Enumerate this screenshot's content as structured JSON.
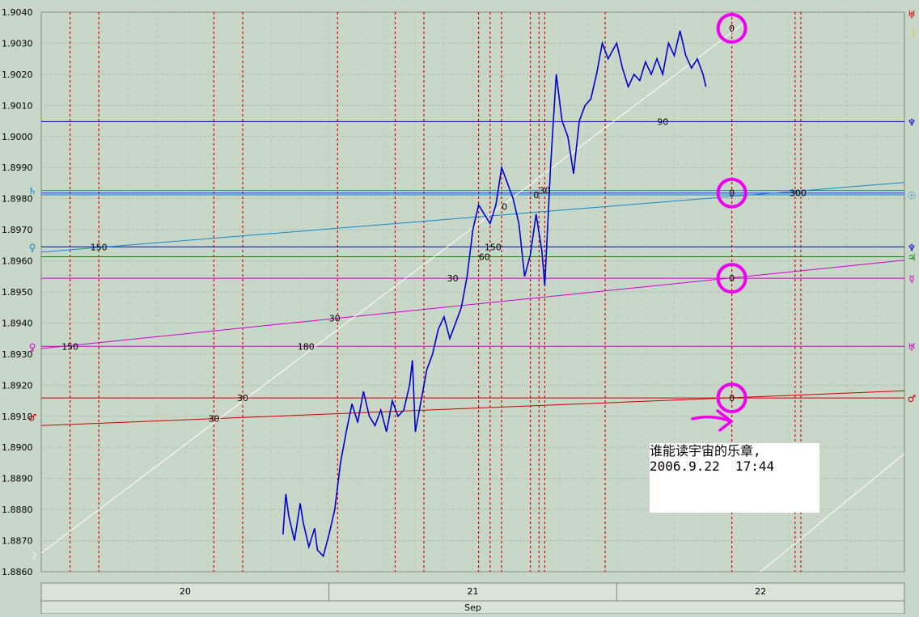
{
  "colors": {
    "background": "#c8d7c8",
    "plot_background": "#c8d7c8",
    "grid": "#9aa89a",
    "price_line": "#0000cc",
    "planet_line_red": "#cc0000",
    "planet_line_magenta": "#cc00cc",
    "planet_line_blue": "#0000cc",
    "planet_line_cyan": "#1188cc",
    "planet_line_green": "#008800",
    "moon_line": "#ffffff",
    "vertical_marker": "#dd0000",
    "highlight_circle": "#ee00ee"
  },
  "chart_data": {
    "type": "line",
    "title": "",
    "xlabel": "Sep",
    "ylabel": "",
    "ylim": [
      1.886,
      1.904
    ],
    "y_ticks": [
      "1.8860",
      "1.8870",
      "1.8880",
      "1.8890",
      "1.8900",
      "1.8910",
      "1.8920",
      "1.8930",
      "1.8940",
      "1.8950",
      "1.8960",
      "1.8970",
      "1.8980",
      "1.8990",
      "1.9000",
      "1.9010",
      "1.9020",
      "1.9030",
      "1.9040"
    ],
    "x_unit": "day",
    "xlim": [
      19.5,
      22.5
    ],
    "date_labels": [
      {
        "day": 20,
        "label": "20"
      },
      {
        "day": 21,
        "label": "21"
      },
      {
        "day": 22,
        "label": "22"
      }
    ],
    "price_series": {
      "name": "",
      "points": [
        [
          20.34,
          1.8872
        ],
        [
          20.35,
          1.8885
        ],
        [
          20.36,
          1.8878
        ],
        [
          20.38,
          1.887
        ],
        [
          20.4,
          1.8882
        ],
        [
          20.41,
          1.8876
        ],
        [
          20.43,
          1.8868
        ],
        [
          20.45,
          1.8874
        ],
        [
          20.46,
          1.8867
        ],
        [
          20.48,
          1.8865
        ],
        [
          20.5,
          1.8872
        ],
        [
          20.52,
          1.888
        ],
        [
          20.54,
          1.8895
        ],
        [
          20.56,
          1.8905
        ],
        [
          20.58,
          1.8914
        ],
        [
          20.6,
          1.8908
        ],
        [
          20.62,
          1.8918
        ],
        [
          20.64,
          1.891
        ],
        [
          20.66,
          1.8907
        ],
        [
          20.68,
          1.8912
        ],
        [
          20.7,
          1.8905
        ],
        [
          20.72,
          1.8915
        ],
        [
          20.74,
          1.891
        ],
        [
          20.76,
          1.8912
        ],
        [
          20.78,
          1.892
        ],
        [
          20.79,
          1.8928
        ],
        [
          20.8,
          1.8905
        ],
        [
          20.82,
          1.8915
        ],
        [
          20.84,
          1.8925
        ],
        [
          20.86,
          1.893
        ],
        [
          20.88,
          1.8938
        ],
        [
          20.9,
          1.8942
        ],
        [
          20.92,
          1.8935
        ],
        [
          20.94,
          1.894
        ],
        [
          20.96,
          1.8945
        ],
        [
          20.98,
          1.8955
        ],
        [
          21.0,
          1.897
        ],
        [
          21.02,
          1.8978
        ],
        [
          21.04,
          1.8975
        ],
        [
          21.06,
          1.8972
        ],
        [
          21.08,
          1.8978
        ],
        [
          21.1,
          1.899
        ],
        [
          21.12,
          1.8985
        ],
        [
          21.14,
          1.898
        ],
        [
          21.16,
          1.8972
        ],
        [
          21.18,
          1.8955
        ],
        [
          21.2,
          1.8962
        ],
        [
          21.22,
          1.8975
        ],
        [
          21.24,
          1.8963
        ],
        [
          21.25,
          1.8952
        ],
        [
          21.27,
          1.899
        ],
        [
          21.29,
          1.902
        ],
        [
          21.31,
          1.9005
        ],
        [
          21.33,
          1.9
        ],
        [
          21.35,
          1.8988
        ],
        [
          21.37,
          1.9005
        ],
        [
          21.39,
          1.901
        ],
        [
          21.41,
          1.9012
        ],
        [
          21.43,
          1.902
        ],
        [
          21.45,
          1.903
        ],
        [
          21.47,
          1.9025
        ],
        [
          21.5,
          1.903
        ],
        [
          21.52,
          1.9022
        ],
        [
          21.54,
          1.9016
        ],
        [
          21.56,
          1.902
        ],
        [
          21.58,
          1.9018
        ],
        [
          21.6,
          1.9024
        ],
        [
          21.62,
          1.902
        ],
        [
          21.64,
          1.9025
        ],
        [
          21.66,
          1.902
        ],
        [
          21.68,
          1.903
        ],
        [
          21.7,
          1.9026
        ],
        [
          21.72,
          1.9034
        ],
        [
          21.74,
          1.9026
        ],
        [
          21.76,
          1.9022
        ],
        [
          21.78,
          1.9025
        ],
        [
          21.8,
          1.902
        ],
        [
          21.81,
          1.9016
        ]
      ]
    },
    "vertical_markers_x": [
      19.6,
      19.7,
      20.1,
      20.2,
      20.53,
      20.73,
      20.83,
      21.02,
      21.06,
      21.1,
      21.2,
      21.23,
      21.25,
      21.46,
      21.9,
      22.12,
      22.14
    ],
    "planet_levels": [
      {
        "symbol": "♄",
        "y": 1.89826,
        "color": "#1188cc",
        "side": "left"
      },
      {
        "symbol": "♀",
        "y": 1.89645,
        "color": "#1188cc",
        "side": "left"
      },
      {
        "symbol": "♀",
        "y": 1.89325,
        "color": "#cc00cc",
        "side": "left"
      },
      {
        "symbol": "♂",
        "y": 1.89098,
        "color": "#cc0000",
        "side": "left"
      },
      {
        "symbol": "☽",
        "y": 1.88655,
        "color": "#ffffff",
        "side": "left"
      },
      {
        "symbol": "♅",
        "y": 1.90393,
        "color": "#cc0000",
        "side": "right"
      },
      {
        "symbol": "☽",
        "y": 1.90333,
        "color": "#cccc00",
        "side": "right"
      },
      {
        "symbol": "♆",
        "y": 1.90048,
        "color": "#0000cc",
        "side": "right"
      },
      {
        "symbol": "☉",
        "y": 1.89812,
        "color": "#1188cc",
        "side": "right"
      },
      {
        "symbol": "♆",
        "y": 1.89645,
        "color": "#0000cc",
        "side": "right"
      },
      {
        "symbol": "♃",
        "y": 1.89613,
        "color": "#008800",
        "side": "right"
      },
      {
        "symbol": "☿",
        "y": 1.89544,
        "color": "#cc00cc",
        "side": "right"
      },
      {
        "symbol": "♅",
        "y": 1.89325,
        "color": "#cc00cc",
        "side": "right"
      },
      {
        "symbol": "♂",
        "y": 1.89159,
        "color": "#cc0000",
        "side": "right"
      }
    ],
    "horizontal_lines": [
      {
        "y": 1.90048,
        "color": "#0000cc"
      },
      {
        "y": 1.89826,
        "color": "#1188cc"
      },
      {
        "y": 1.89812,
        "color": "#1188cc"
      },
      {
        "y": 1.89818,
        "color": "#2233aa"
      },
      {
        "y": 1.89645,
        "color": "#0000cc"
      },
      {
        "y": 1.89613,
        "color": "#008800"
      },
      {
        "y": 1.89544,
        "color": "#cc00cc"
      },
      {
        "y": 1.89325,
        "color": "#cc00cc"
      },
      {
        "y": 1.89159,
        "color": "#cc0000"
      }
    ],
    "sloped_lines": [
      {
        "x1": 19.5,
        "y1": 1.89628,
        "x2": 22.5,
        "y2": 1.89852,
        "color": "#1188cc"
      },
      {
        "x1": 19.5,
        "y1": 1.89318,
        "x2": 22.5,
        "y2": 1.89602,
        "color": "#cc00cc"
      },
      {
        "x1": 19.5,
        "y1": 1.8907,
        "x2": 22.5,
        "y2": 1.89182,
        "color": "#cc0000"
      },
      {
        "x1": 19.5,
        "y1": 1.8866,
        "x2": 21.95,
        "y2": 1.9037,
        "color": "#ffffff"
      },
      {
        "x1": 22.0,
        "y1": 1.886,
        "x2": 22.5,
        "y2": 1.8898,
        "color": "#ffffff"
      }
    ],
    "aspect_labels": [
      {
        "text": "150",
        "x": 19.7,
        "y": 1.89645
      },
      {
        "text": "150",
        "x": 21.07,
        "y": 1.89645
      },
      {
        "text": "60",
        "x": 21.04,
        "y": 1.89613
      },
      {
        "text": "30",
        "x": 20.93,
        "y": 1.89544
      },
      {
        "text": "0",
        "x": 21.11,
        "y": 1.89775
      },
      {
        "text": "30",
        "x": 21.25,
        "y": 1.89826
      },
      {
        "text": "0",
        "x": 21.22,
        "y": 1.89812
      },
      {
        "text": "90",
        "x": 21.66,
        "y": 1.90048
      },
      {
        "text": "0",
        "x": 21.9,
        "y": 1.90348
      },
      {
        "text": "0",
        "x": 21.9,
        "y": 1.89818
      },
      {
        "text": "300",
        "x": 22.13,
        "y": 1.89818
      },
      {
        "text": "0",
        "x": 21.9,
        "y": 1.89544
      },
      {
        "text": "30",
        "x": 20.52,
        "y": 1.89416
      },
      {
        "text": "150",
        "x": 19.6,
        "y": 1.89325
      },
      {
        "text": "180",
        "x": 20.42,
        "y": 1.89325
      },
      {
        "text": "30",
        "x": 20.2,
        "y": 1.89159
      },
      {
        "text": "30",
        "x": 20.1,
        "y": 1.89093
      },
      {
        "text": "0",
        "x": 21.9,
        "y": 1.89159
      }
    ],
    "highlight_circles": [
      {
        "x": 21.9,
        "y": 1.90348
      },
      {
        "x": 21.9,
        "y": 1.89818
      },
      {
        "x": 21.9,
        "y": 1.89544
      },
      {
        "x": 21.9,
        "y": 1.89159
      }
    ]
  },
  "note": {
    "line1": "谁能读宇宙的乐章,",
    "line2": "2006.9.22  17:44"
  }
}
